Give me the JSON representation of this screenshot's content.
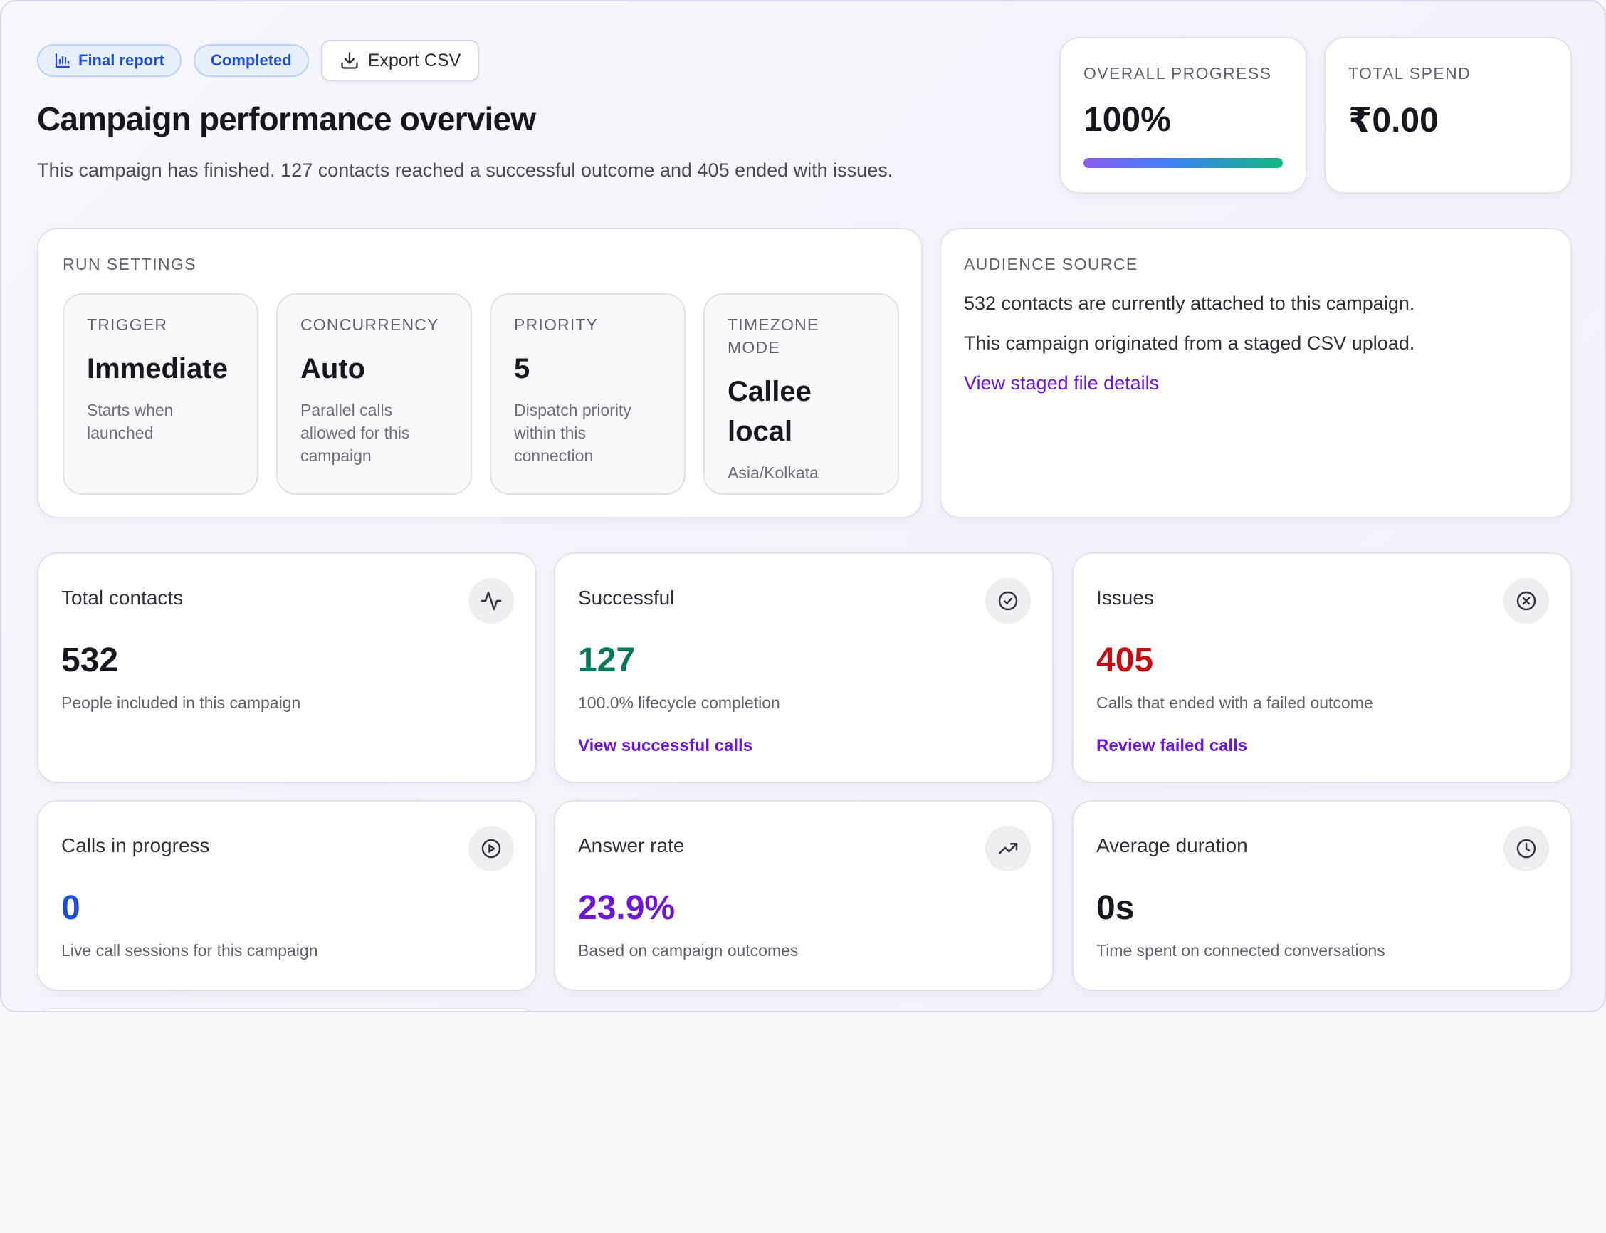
{
  "header": {
    "badge_report": "Final report",
    "badge_status": "Completed",
    "export_label": "Export CSV",
    "title": "Campaign performance overview",
    "subtitle": "This campaign has finished. 127 contacts reached a successful outcome and 405 ended with issues."
  },
  "overall_progress": {
    "label": "Overall progress",
    "value": "100%",
    "fraction": 1.0
  },
  "total_spend": {
    "label": "Total spend",
    "value": "₹0.00"
  },
  "run_settings": {
    "label": "Run settings",
    "tiles": [
      {
        "key": "Trigger",
        "value": "Immediate",
        "desc": "Starts when launched"
      },
      {
        "key": "Concurrency",
        "value": "Auto",
        "desc": "Parallel calls allowed for this campaign"
      },
      {
        "key": "Priority",
        "value": "5",
        "desc": "Dispatch priority within this connection"
      },
      {
        "key": "Timezone mode",
        "value": "Callee local",
        "desc": "Asia/Kolkata"
      }
    ]
  },
  "audience": {
    "label": "Audience source",
    "line1": "532 contacts are currently attached to this campaign.",
    "line2": "This campaign originated from a staged CSV upload.",
    "link": "View staged file details"
  },
  "metrics": [
    {
      "title": "Total contacts",
      "value": "532",
      "desc": "People included in this campaign",
      "icon": "activity-icon",
      "color": "#16181f"
    },
    {
      "title": "Successful",
      "value": "127",
      "desc": "100.0% lifecycle completion",
      "link": "View successful calls",
      "icon": "check-circle-icon",
      "color": "#047857"
    },
    {
      "title": "Issues",
      "value": "405",
      "desc": "Calls that ended with a failed outcome",
      "link": "Review failed calls",
      "icon": "x-circle-icon",
      "color": "#c10e13"
    },
    {
      "title": "Calls in progress",
      "value": "0",
      "desc": "Live call sessions for this campaign",
      "icon": "play-circle-icon",
      "color": "#1d4ed8"
    },
    {
      "title": "Answer rate",
      "value": "23.9%",
      "desc": "Based on campaign outcomes",
      "icon": "trending-up-icon",
      "color": "#6d16d6"
    },
    {
      "title": "Average duration",
      "value": "0s",
      "desc": "Time spent on connected conversations",
      "icon": "clock-icon",
      "color": "#16181f"
    }
  ]
}
